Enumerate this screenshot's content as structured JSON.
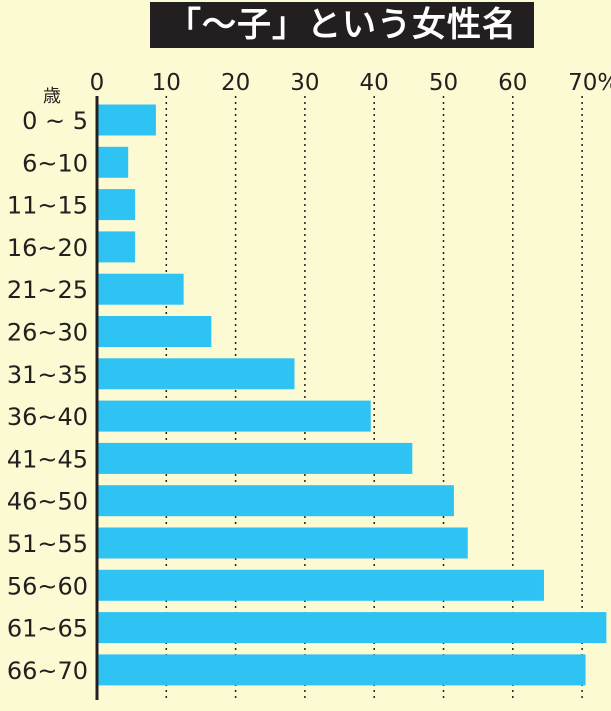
{
  "chart_data": {
    "type": "bar",
    "orientation": "horizontal",
    "title": "「〜子」という女性名",
    "y_unit_label": "歳",
    "categories": [
      "0 ~ 5",
      "6~10",
      "11~15",
      "16~20",
      "21~25",
      "26~30",
      "31~35",
      "36~40",
      "41~45",
      "46~50",
      "51~55",
      "56~60",
      "61~65",
      "66~70"
    ],
    "values": [
      8.5,
      4.5,
      5.5,
      5.5,
      12.5,
      16.5,
      28.5,
      39.5,
      45.5,
      51.5,
      53.5,
      64.5,
      73.5,
      70.5
    ],
    "xlim": [
      0,
      73
    ],
    "x_ticks": [
      0,
      10,
      20,
      30,
      40,
      50,
      60,
      70
    ],
    "x_tick_labels": [
      "0",
      "10",
      "20",
      "30",
      "40",
      "50",
      "60",
      "70%"
    ],
    "grid": "vertical dotted",
    "colors": {
      "bar": "#2ec3f2",
      "background": "#fcfad2",
      "title_background": "#231f20",
      "title_text": "#ffffff",
      "axis": "#231f20"
    }
  }
}
